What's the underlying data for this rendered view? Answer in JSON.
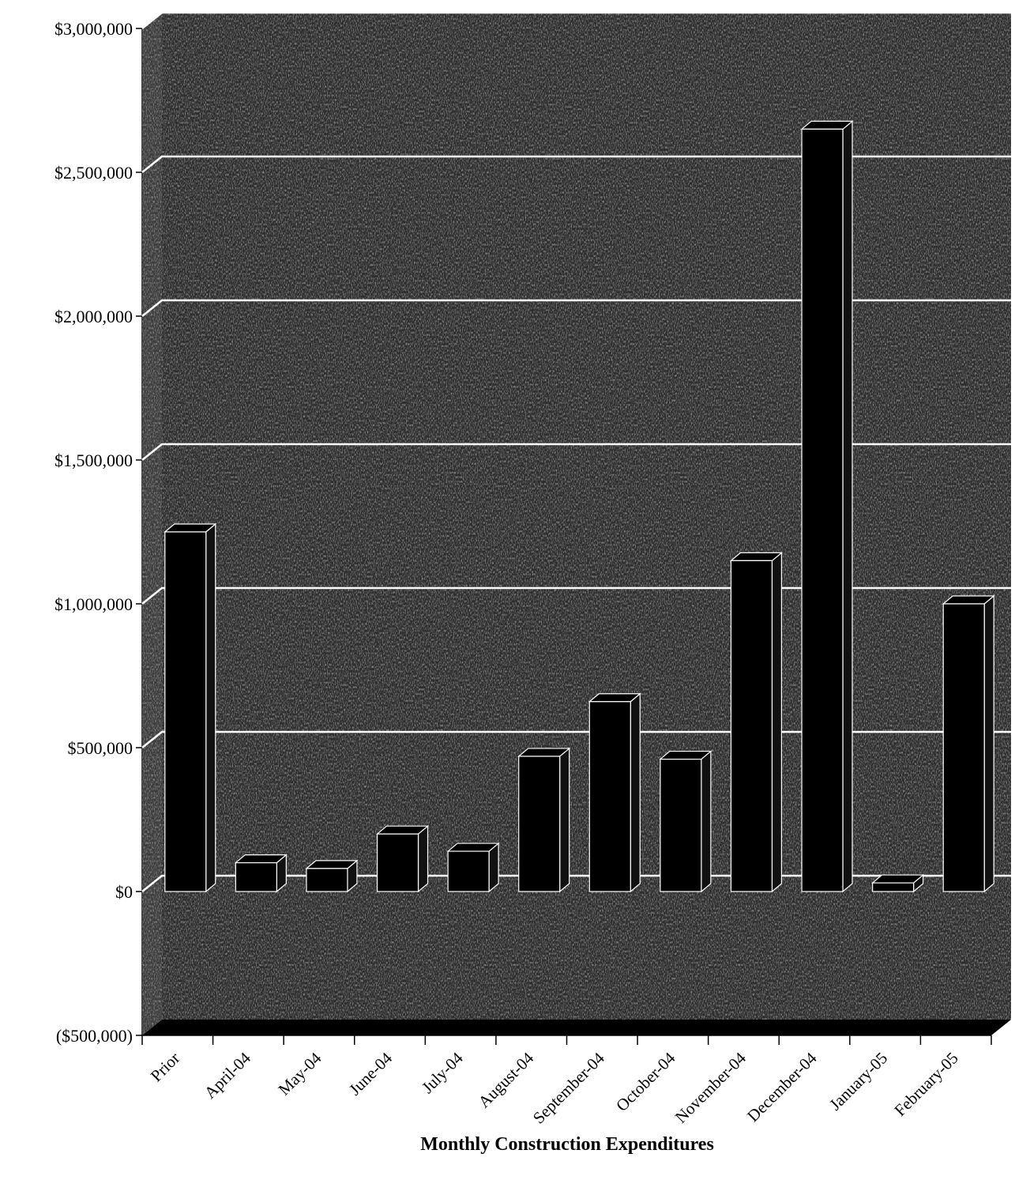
{
  "chart_data": {
    "type": "bar",
    "title": "",
    "xlabel": "Monthly Construction Expenditures",
    "ylabel": "",
    "categories": [
      "Prior",
      "April-04",
      "May-04",
      "June-04",
      "July-04",
      "August-04",
      "September-04",
      "October-04",
      "November-04",
      "December-04",
      "January-05",
      "February-05"
    ],
    "values": [
      1250000,
      100000,
      80000,
      200000,
      140000,
      470000,
      660000,
      460000,
      1150000,
      2650000,
      30000,
      1000000
    ],
    "ylim": [
      -500000,
      3000000
    ],
    "yticks": [
      -500000,
      0,
      500000,
      1000000,
      1500000,
      2000000,
      2500000,
      3000000
    ],
    "ytick_labels": [
      "($500,000)",
      "$0",
      "$500,000",
      "$1,000,000",
      "$1,500,000",
      "$2,000,000",
      "$2,500,000",
      "$3,000,000"
    ],
    "grid": true,
    "legend": "none",
    "style": "3d",
    "colors": {
      "bar": "#000000",
      "wall": "#2b2b2b",
      "floor": "#000000",
      "gridline": "#ffffff"
    }
  }
}
